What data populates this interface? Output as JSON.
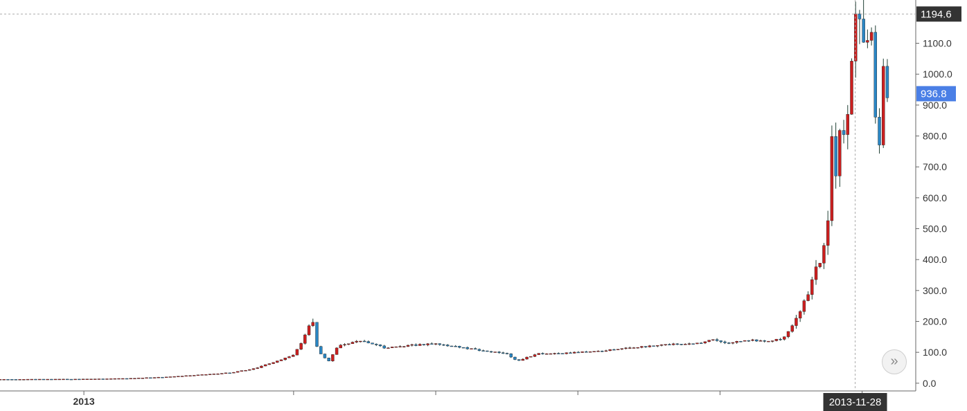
{
  "chart_data": {
    "type": "candlestick",
    "y_axis": {
      "ticks": [
        "0.0",
        "100.0",
        "200.0",
        "300.0",
        "400.0",
        "500.0",
        "600.0",
        "700.0",
        "800.0",
        "900.0",
        "1000.0",
        "1100.0"
      ],
      "ylim": [
        -25,
        1240
      ],
      "position": "right",
      "grid": false
    },
    "x_axis": {
      "labels": [
        {
          "date": "2013-01-01",
          "label": "2013"
        }
      ],
      "minor_ticks": [
        "2013-04-01",
        "2013-06-01",
        "2013-08-01",
        "2013-10-01",
        "2013-12-01"
      ],
      "xlim": [
        "2012-11-26",
        "2013-12-24"
      ]
    },
    "crosshair": {
      "date": "2013-11-28",
      "date_label": "2013-11-28",
      "value": 1194.6,
      "value_label": "1194.6",
      "color": "#333333"
    },
    "last_price": {
      "value": 936.8,
      "label": "936.8",
      "color": "#4a7fe6"
    },
    "colors": {
      "up": "#cc1f1f",
      "down": "#2a86c4",
      "wick": "#1f3f33",
      "axis": "#555555"
    },
    "keypoints": [
      [
        "2012-11-26",
        12.4
      ],
      [
        "2013-01-01",
        13.3
      ],
      [
        "2013-01-20",
        15.5
      ],
      [
        "2013-02-05",
        20
      ],
      [
        "2013-02-20",
        27
      ],
      [
        "2013-03-05",
        34
      ],
      [
        "2013-03-15",
        47
      ],
      [
        "2013-03-25",
        72
      ],
      [
        "2013-04-01",
        93
      ],
      [
        "2013-04-05",
        140
      ],
      [
        "2013-04-09",
        215
      ],
      [
        "2013-04-11",
        120
      ],
      [
        "2013-04-13",
        90
      ],
      [
        "2013-04-16",
        70
      ],
      [
        "2013-04-20",
        120
      ],
      [
        "2013-04-30",
        137
      ],
      [
        "2013-05-10",
        115
      ],
      [
        "2013-05-20",
        122
      ],
      [
        "2013-06-01",
        128
      ],
      [
        "2013-06-10",
        118
      ],
      [
        "2013-06-20",
        106
      ],
      [
        "2013-07-01",
        98
      ],
      [
        "2013-07-06",
        72
      ],
      [
        "2013-07-15",
        97
      ],
      [
        "2013-07-25",
        96
      ],
      [
        "2013-08-10",
        104
      ],
      [
        "2013-08-25",
        115
      ],
      [
        "2013-09-10",
        125
      ],
      [
        "2013-09-20",
        127
      ],
      [
        "2013-09-28",
        141
      ],
      [
        "2013-10-05",
        130
      ],
      [
        "2013-10-12",
        140
      ],
      [
        "2013-10-20",
        135
      ],
      [
        "2013-10-28",
        145
      ],
      [
        "2013-11-02",
        200
      ],
      [
        "2013-11-06",
        260
      ],
      [
        "2013-11-10",
        340
      ],
      [
        "2013-11-14",
        425
      ],
      [
        "2013-11-17",
        560
      ],
      [
        "2013-11-18",
        790
      ],
      [
        "2013-11-19",
        650
      ],
      [
        "2013-11-21",
        780
      ],
      [
        "2013-11-23",
        820
      ],
      [
        "2013-11-25",
        900
      ],
      [
        "2013-11-27",
        1070
      ],
      [
        "2013-11-28",
        1195
      ],
      [
        "2013-11-30",
        1140
      ],
      [
        "2013-12-02",
        1050
      ],
      [
        "2013-12-04",
        1160
      ],
      [
        "2013-12-05",
        1100
      ],
      [
        "2013-12-07",
        840
      ],
      [
        "2013-12-08",
        700
      ],
      [
        "2013-12-09",
        900
      ],
      [
        "2013-12-10",
        1010
      ],
      [
        "2013-12-12",
        936.8
      ]
    ]
  },
  "controls": {
    "scroll_right_label": "»"
  }
}
